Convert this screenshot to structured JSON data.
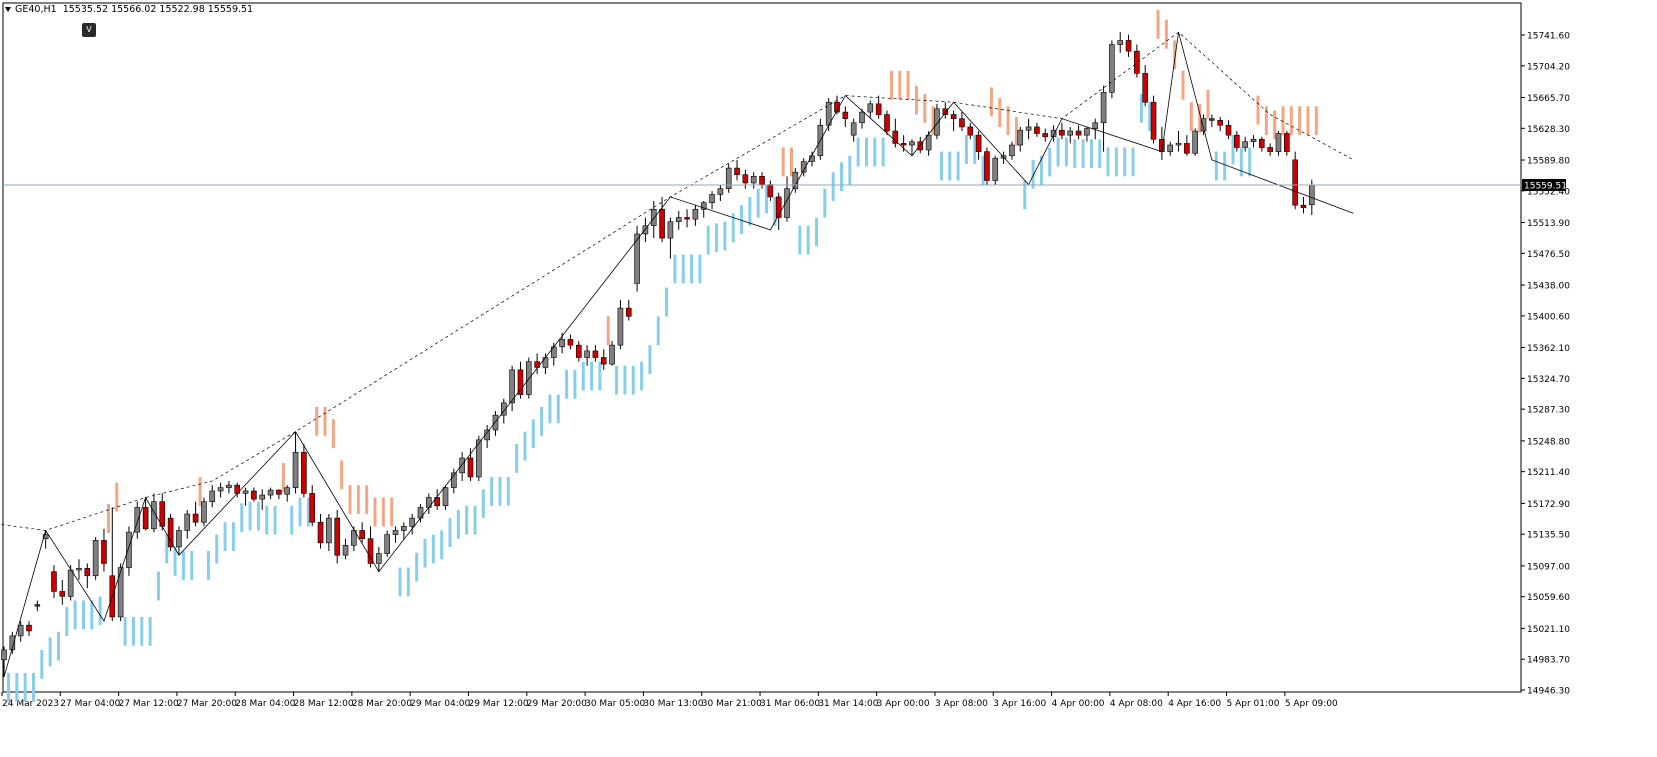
{
  "symbol": {
    "name": "GE40,H1",
    "ohlc": "15535.52 15566.02 15522.98 15559.51"
  },
  "v_button_label": "V",
  "price_label": "15559.51",
  "colors": {
    "bull_body": "#808080",
    "bear_body": "#cc0000",
    "wick": "#000000",
    "up_ribbon": "#87ceeb",
    "down_ribbon": "#f4a582",
    "zigzag": "#000000",
    "price_line": "#8fa9bf",
    "price_tag": "#000000"
  },
  "chart_data": {
    "type": "candlestick",
    "title": "GE40,H1",
    "ylim": [
      14946.3,
      15760
    ],
    "y_ticks": [
      "15741.60",
      "15704.20",
      "15665.70",
      "15628.30",
      "15589.80",
      "15552.40",
      "15513.90",
      "15476.50",
      "15438.00",
      "15400.60",
      "15362.10",
      "15324.70",
      "15287.30",
      "15248.80",
      "15211.40",
      "15172.90",
      "15135.50",
      "15097.00",
      "15059.60",
      "15021.10",
      "14983.70",
      "14946.30"
    ],
    "x_ticks": [
      "24 Mar 2023",
      "27 Mar 04:00",
      "27 Mar 12:00",
      "27 Mar 20:00",
      "28 Mar 04:00",
      "28 Mar 12:00",
      "28 Mar 20:00",
      "29 Mar 04:00",
      "29 Mar 12:00",
      "29 Mar 20:00",
      "30 Mar 05:00",
      "30 Mar 13:00",
      "30 Mar 21:00",
      "31 Mar 06:00",
      "31 Mar 14:00",
      "3 Apr 00:00",
      "3 Apr 08:00",
      "3 Apr 16:00",
      "4 Apr 00:00",
      "4 Apr 08:00",
      "4 Apr 16:00",
      "5 Apr 01:00",
      "5 Apr 09:00"
    ],
    "last_price": 15559.51,
    "candles": [
      [
        14983,
        14999,
        14962,
        14995
      ],
      [
        14995,
        15017,
        14990,
        15012
      ],
      [
        15012,
        15030,
        15005,
        15025
      ],
      [
        15025,
        15030,
        15012,
        15018
      ],
      [
        15050,
        15055,
        15042,
        15048
      ],
      [
        15130,
        15140,
        15118,
        15135
      ],
      [
        15090,
        15098,
        15058,
        15066
      ],
      [
        15066,
        15080,
        15050,
        15060
      ],
      [
        15060,
        15098,
        15055,
        15092
      ],
      [
        15092,
        15105,
        15080,
        15094
      ],
      [
        15094,
        15100,
        15070,
        15085
      ],
      [
        15085,
        15132,
        15080,
        15128
      ],
      [
        15128,
        15142,
        15090,
        15100
      ],
      [
        15085,
        15168,
        15030,
        15035
      ],
      [
        15035,
        15100,
        15030,
        15095
      ],
      [
        15095,
        15145,
        15085,
        15138
      ],
      [
        15138,
        15175,
        15130,
        15168
      ],
      [
        15168,
        15180,
        15140,
        15142
      ],
      [
        15142,
        15185,
        15138,
        15175
      ],
      [
        15175,
        15185,
        15140,
        15145
      ],
      [
        15155,
        15160,
        15115,
        15120
      ],
      [
        15120,
        15145,
        15110,
        15140
      ],
      [
        15140,
        15165,
        15130,
        15160
      ],
      [
        15160,
        15175,
        15145,
        15150
      ],
      [
        15150,
        15180,
        15145,
        15175
      ],
      [
        15175,
        15195,
        15168,
        15188
      ],
      [
        15188,
        15198,
        15180,
        15192
      ],
      [
        15192,
        15200,
        15185,
        15195
      ],
      [
        15195,
        15198,
        15180,
        15185
      ],
      [
        15185,
        15192,
        15170,
        15188
      ],
      [
        15188,
        15192,
        15175,
        15178
      ],
      [
        15178,
        15190,
        15165,
        15183
      ],
      [
        15183,
        15192,
        15178,
        15189
      ],
      [
        15189,
        15190,
        15178,
        15184
      ],
      [
        15184,
        15195,
        15175,
        15192
      ],
      [
        15192,
        15260,
        15185,
        15235
      ],
      [
        15235,
        15245,
        15180,
        15185
      ],
      [
        15185,
        15195,
        15145,
        15150
      ],
      [
        15150,
        15160,
        15118,
        15125
      ],
      [
        15125,
        15160,
        15115,
        15155
      ],
      [
        15155,
        15165,
        15100,
        15110
      ],
      [
        15110,
        15130,
        15105,
        15122
      ],
      [
        15122,
        15145,
        15115,
        15140
      ],
      [
        15140,
        15150,
        15125,
        15130
      ],
      [
        15130,
        15145,
        15095,
        15100
      ],
      [
        15100,
        15120,
        15090,
        15112
      ],
      [
        15112,
        15140,
        15108,
        15135
      ],
      [
        15135,
        15145,
        15125,
        15140
      ],
      [
        15140,
        15150,
        15130,
        15145
      ],
      [
        15145,
        15160,
        15135,
        15155
      ],
      [
        15155,
        15172,
        15150,
        15168
      ],
      [
        15168,
        15185,
        15160,
        15180
      ],
      [
        15180,
        15190,
        15165,
        15170
      ],
      [
        15170,
        15195,
        15165,
        15192
      ],
      [
        15192,
        15215,
        15185,
        15210
      ],
      [
        15210,
        15235,
        15200,
        15228
      ],
      [
        15228,
        15240,
        15200,
        15205
      ],
      [
        15205,
        15255,
        15200,
        15250
      ],
      [
        15250,
        15268,
        15240,
        15262
      ],
      [
        15262,
        15285,
        15255,
        15280
      ],
      [
        15280,
        15300,
        15270,
        15295
      ],
      [
        15295,
        15340,
        15285,
        15335
      ],
      [
        15335,
        15345,
        15300,
        15305
      ],
      [
        15305,
        15350,
        15300,
        15345
      ],
      [
        15345,
        15355,
        15330,
        15338
      ],
      [
        15338,
        15355,
        15330,
        15350
      ],
      [
        15350,
        15368,
        15340,
        15363
      ],
      [
        15363,
        15380,
        15355,
        15372
      ],
      [
        15372,
        15378,
        15360,
        15365
      ],
      [
        15365,
        15370,
        15345,
        15350
      ],
      [
        15350,
        15365,
        15340,
        15358
      ],
      [
        15358,
        15365,
        15345,
        15350
      ],
      [
        15350,
        15360,
        15335,
        15342
      ],
      [
        15342,
        15370,
        15340,
        15365
      ],
      [
        15365,
        15420,
        15360,
        15410
      ],
      [
        15410,
        15420,
        15395,
        15400
      ],
      [
        15440,
        15510,
        15430,
        15500
      ],
      [
        15500,
        15520,
        15490,
        15510
      ],
      [
        15510,
        15540,
        15495,
        15530
      ],
      [
        15530,
        15545,
        15490,
        15495
      ],
      [
        15495,
        15520,
        15470,
        15515
      ],
      [
        15515,
        15528,
        15505,
        15520
      ],
      [
        15520,
        15530,
        15508,
        15518
      ],
      [
        15518,
        15535,
        15510,
        15530
      ],
      [
        15530,
        15540,
        15520,
        15538
      ],
      [
        15538,
        15552,
        15530,
        15548
      ],
      [
        15548,
        15560,
        15540,
        15555
      ],
      [
        15555,
        15585,
        15550,
        15580
      ],
      [
        15580,
        15590,
        15565,
        15572
      ],
      [
        15572,
        15578,
        15555,
        15562
      ],
      [
        15562,
        15575,
        15555,
        15570
      ],
      [
        15570,
        15575,
        15555,
        15560
      ],
      [
        15560,
        15565,
        15540,
        15545
      ],
      [
        15545,
        15550,
        15505,
        15520
      ],
      [
        15520,
        15570,
        15515,
        15555
      ],
      [
        15555,
        15580,
        15550,
        15575
      ],
      [
        15575,
        15592,
        15570,
        15588
      ],
      [
        15588,
        15600,
        15582,
        15595
      ],
      [
        15595,
        15640,
        15590,
        15632
      ],
      [
        15632,
        15665,
        15625,
        15660
      ],
      [
        15660,
        15668,
        15645,
        15648
      ],
      [
        15648,
        15655,
        15630,
        15640
      ],
      [
        15620,
        15640,
        15612,
        15635
      ],
      [
        15635,
        15652,
        15628,
        15648
      ],
      [
        15648,
        15662,
        15640,
        15658
      ],
      [
        15658,
        15668,
        15640,
        15645
      ],
      [
        15645,
        15650,
        15620,
        15625
      ],
      [
        15625,
        15640,
        15605,
        15610
      ],
      [
        15610,
        15620,
        15600,
        15608
      ],
      [
        15608,
        15615,
        15595,
        15612
      ],
      [
        15612,
        15618,
        15598,
        15602
      ],
      [
        15602,
        15625,
        15595,
        15620
      ],
      [
        15620,
        15658,
        15615,
        15652
      ],
      [
        15652,
        15660,
        15640,
        15645
      ],
      [
        15645,
        15650,
        15625,
        15640
      ],
      [
        15640,
        15648,
        15625,
        15630
      ],
      [
        15630,
        15635,
        15615,
        15620
      ],
      [
        15620,
        15625,
        15590,
        15600
      ],
      [
        15600,
        15605,
        15560,
        15565
      ],
      [
        15565,
        15595,
        15560,
        15592
      ],
      [
        15592,
        15600,
        15585,
        15595
      ],
      [
        15595,
        15612,
        15590,
        15608
      ],
      [
        15608,
        15630,
        15600,
        15626
      ],
      [
        15626,
        15640,
        15615,
        15630
      ],
      [
        15630,
        15635,
        15618,
        15622
      ],
      [
        15622,
        15628,
        15612,
        15618
      ],
      [
        15618,
        15632,
        15612,
        15626
      ],
      [
        15626,
        15635,
        15615,
        15620
      ],
      [
        15620,
        15630,
        15610,
        15625
      ],
      [
        15625,
        15632,
        15615,
        15620
      ],
      [
        15620,
        15630,
        15612,
        15628
      ],
      [
        15628,
        15640,
        15615,
        15635
      ],
      [
        15635,
        15680,
        15600,
        15672
      ],
      [
        15672,
        15735,
        15665,
        15730
      ],
      [
        15730,
        15745,
        15720,
        15735
      ],
      [
        15735,
        15742,
        15715,
        15722
      ],
      [
        15722,
        15730,
        15690,
        15695
      ],
      [
        15695,
        15705,
        15655,
        15660
      ],
      [
        15660,
        15668,
        15610,
        15615
      ],
      [
        15615,
        15630,
        15590,
        15600
      ],
      [
        15600,
        15612,
        15595,
        15608
      ],
      [
        15608,
        15625,
        15600,
        15610
      ],
      [
        15610,
        15620,
        15595,
        15598
      ],
      [
        15598,
        15628,
        15595,
        15625
      ],
      [
        15625,
        15645,
        15620,
        15640
      ],
      [
        15640,
        15645,
        15630,
        15638
      ],
      [
        15638,
        15642,
        15625,
        15632
      ],
      [
        15632,
        15638,
        15615,
        15620
      ],
      [
        15620,
        15625,
        15600,
        15605
      ],
      [
        15605,
        15618,
        15600,
        15612
      ],
      [
        15612,
        15620,
        15605,
        15615
      ],
      [
        15615,
        15618,
        15600,
        15605
      ],
      [
        15605,
        15610,
        15595,
        15600
      ],
      [
        15600,
        15625,
        15595,
        15622
      ],
      [
        15622,
        15625,
        15595,
        15600
      ],
      [
        15590,
        15600,
        15530,
        15535
      ],
      [
        15535,
        15545,
        15525,
        15532
      ],
      [
        15535.52,
        15566.02,
        15522.98,
        15559.51
      ]
    ],
    "zigzag": [
      [
        0,
        14962
      ],
      [
        5,
        15140
      ],
      [
        12,
        15030
      ],
      [
        17,
        15180
      ],
      [
        21,
        15110
      ],
      [
        35,
        15260
      ],
      [
        45,
        15090
      ],
      [
        80,
        15545
      ],
      [
        92,
        15505
      ],
      [
        101,
        15668
      ],
      [
        109,
        15595
      ],
      [
        114,
        15660
      ],
      [
        123,
        15560
      ],
      [
        127,
        15640
      ],
      [
        139,
        15600
      ],
      [
        141,
        15745
      ],
      [
        145,
        15590
      ],
      [
        162,
        15525
      ]
    ],
    "dashed_peaks": [
      [
        -6,
        15155
      ],
      [
        5,
        15140
      ],
      [
        17,
        15180
      ],
      [
        25,
        15200
      ],
      [
        35,
        15260
      ],
      [
        80,
        15545
      ],
      [
        101,
        15668
      ],
      [
        114,
        15660
      ],
      [
        127,
        15640
      ],
      [
        141,
        15745
      ],
      [
        152,
        15645
      ],
      [
        162,
        15590
      ]
    ]
  }
}
